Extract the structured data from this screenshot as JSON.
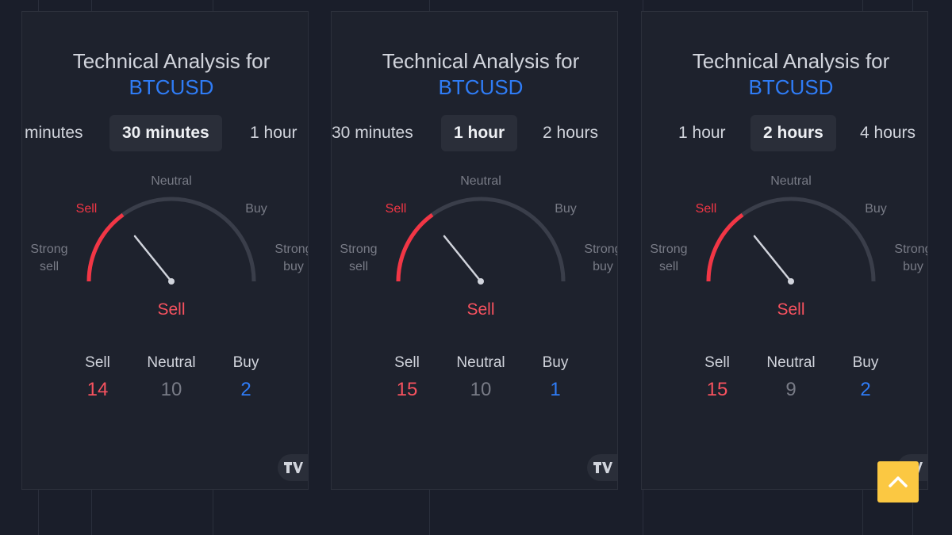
{
  "colors": {
    "background": "#1a1e2a",
    "panel": "#1e222d",
    "sell": "#f23645",
    "buy": "#2f7cf6",
    "neutral": "#787b86",
    "scroll_button": "#fbc842"
  },
  "gauge_labels": {
    "strong_sell_1": "Strong",
    "strong_sell_2": "sell",
    "sell": "Sell",
    "neutral": "Neutral",
    "buy": "Buy",
    "strong_buy_1": "Strong",
    "strong_buy_2": "buy"
  },
  "widgets": [
    {
      "title": "Technical Analysis for",
      "symbol": "BTCUSD",
      "tabs": {
        "prev": "minutes",
        "active": "30 minutes",
        "next": "1 hour"
      },
      "summary": "Sell",
      "counts": {
        "sell_label": "Sell",
        "sell": "14",
        "neutral_label": "Neutral",
        "neutral": "10",
        "buy_label": "Buy",
        "buy": "2"
      },
      "logo_icon": "tradingview-logo-icon"
    },
    {
      "title": "Technical Analysis for",
      "symbol": "BTCUSD",
      "tabs": {
        "prev": "30 minutes",
        "active": "1 hour",
        "next": "2 hours"
      },
      "summary": "Sell",
      "counts": {
        "sell_label": "Sell",
        "sell": "15",
        "neutral_label": "Neutral",
        "neutral": "10",
        "buy_label": "Buy",
        "buy": "1"
      },
      "logo_icon": "tradingview-logo-icon"
    },
    {
      "title": "Technical Analysis for",
      "symbol": "BTCUSD",
      "tabs": {
        "prev": "1 hour",
        "active": "2 hours",
        "next": "4 hours"
      },
      "summary": "Sell",
      "counts": {
        "sell_label": "Sell",
        "sell": "15",
        "neutral_label": "Neutral",
        "neutral": "9",
        "buy_label": "Buy",
        "buy": "2"
      },
      "logo_icon": "tradingview-logo-icon"
    }
  ],
  "scroll_top_icon": "chevron-up-icon"
}
